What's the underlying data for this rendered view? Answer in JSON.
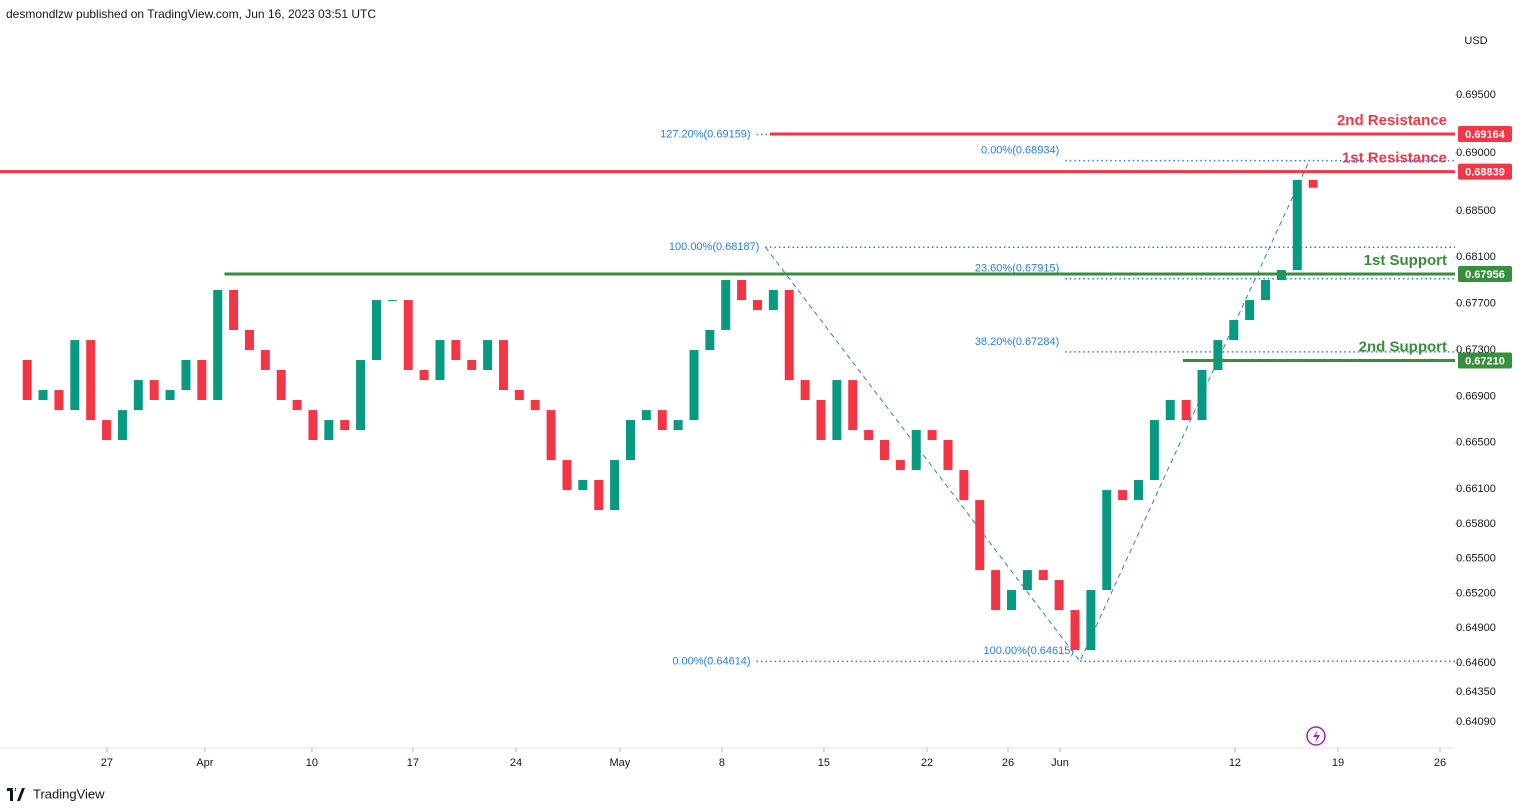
{
  "header": "desmondlzw published on TradingView.com, Jun 16, 2023 03:51 UTC",
  "footer": "TradingView",
  "chart_data": {
    "type": "candlestick",
    "currency": "USD",
    "up_color": "#089981",
    "down_color": "#f23645",
    "x": [
      0.5,
      1.58,
      2.66,
      3.74,
      4.82,
      5.9,
      6.98,
      8.06,
      9.14,
      10.22,
      11.3,
      12.38,
      13.46,
      14.54,
      15.62,
      16.7,
      17.78,
      18.86,
      19.94,
      21.02,
      22.1,
      23.18,
      24.26,
      25.34,
      26.42,
      27.5,
      28.58,
      29.66,
      30.74,
      31.82,
      32.9,
      33.98,
      35.06,
      36.14,
      37.22,
      38.3,
      39.38,
      40.46,
      41.54,
      42.62,
      43.7,
      44.78,
      45.86,
      46.94,
      48.02,
      49.1,
      50.18,
      51.26,
      52.34,
      53.42,
      54.5,
      55.58,
      56.66,
      57.74,
      58.82,
      59.9,
      60.98,
      62.06,
      63.14,
      64.22,
      65.3,
      66.38,
      67.46,
      68.54,
      69.62,
      70.7,
      71.78,
      72.86,
      73.94,
      75.02,
      76.1,
      77.18,
      78.26,
      79.34,
      80.42,
      81.5,
      82.58,
      83.66,
      84.74,
      85.82,
      86.9,
      87.98,
      89.06
    ],
    "values": [
      0.67214,
      0.66869,
      0.66955,
      0.66782,
      0.67386,
      0.66696,
      0.66524,
      0.66782,
      0.67041,
      0.66869,
      0.66955,
      0.67214,
      0.66869,
      0.67818,
      0.67473,
      0.673,
      0.67128,
      0.66869,
      0.66782,
      0.66524,
      0.66696,
      0.6661,
      0.67214,
      0.67731,
      0.67731,
      0.67128,
      0.67041,
      0.67386,
      0.67214,
      0.67128,
      0.67386,
      0.66955,
      0.66869,
      0.66782,
      0.66351,
      0.66092,
      0.66179,
      0.6592,
      0.66351,
      0.66696,
      0.66782,
      0.6661,
      0.66696,
      0.673,
      0.67473,
      0.67904,
      0.67731,
      0.67645,
      0.67818,
      0.67041,
      0.66869,
      0.66524,
      0.67041,
      0.6661,
      0.66524,
      0.66351,
      0.66265,
      0.6661,
      0.66524,
      0.66265,
      0.66006,
      0.65402,
      0.65057,
      0.6523,
      0.65402,
      0.65316,
      0.65057,
      0.64712,
      0.6523,
      0.66092,
      0.66006,
      0.66179,
      0.66696,
      0.66869,
      0.66696,
      0.67128,
      0.67386,
      0.67559,
      0.67731,
      0.67904,
      0.6799,
      0.68767,
      0.687
    ],
    "xlim": [
      -0.27,
      98.71
    ],
    "ylim": [
      0.63893,
      0.70147
    ],
    "xticks": [
      {
        "value": 7,
        "label": "27"
      },
      {
        "value": 13.67,
        "label": "Apr"
      },
      {
        "value": 20.95,
        "label": "10"
      },
      {
        "value": 27.82,
        "label": "17"
      },
      {
        "value": 34.83,
        "label": "24"
      },
      {
        "value": 41.9,
        "label": "May"
      },
      {
        "value": 48.84,
        "label": "8"
      },
      {
        "value": 55.78,
        "label": "15"
      },
      {
        "value": 62.79,
        "label": "22"
      },
      {
        "value": 68.3,
        "label": "26"
      },
      {
        "value": 71.84,
        "label": "Jun"
      },
      {
        "value": 83.74,
        "label": "12"
      },
      {
        "value": 90.75,
        "label": "19"
      },
      {
        "value": 97.69,
        "label": "26"
      }
    ],
    "yticks": [
      {
        "value": 0.695,
        "label": "0.69500"
      },
      {
        "value": 0.69,
        "label": "0.69000"
      },
      {
        "value": 0.685,
        "label": "0.68500"
      },
      {
        "value": 0.681,
        "label": "0.68100"
      },
      {
        "value": 0.677,
        "label": "0.67700"
      },
      {
        "value": 0.673,
        "label": "0.67300"
      },
      {
        "value": 0.669,
        "label": "0.66900"
      },
      {
        "value": 0.665,
        "label": "0.66500"
      },
      {
        "value": 0.661,
        "label": "0.66100"
      },
      {
        "value": 0.658,
        "label": "0.65800"
      },
      {
        "value": 0.655,
        "label": "0.65500"
      },
      {
        "value": 0.652,
        "label": "0.65200"
      },
      {
        "value": 0.649,
        "label": "0.64900"
      },
      {
        "value": 0.646,
        "label": "0.64600"
      },
      {
        "value": 0.6435,
        "label": "0.64350"
      },
      {
        "value": 0.6409,
        "label": "0.64090"
      }
    ],
    "levels": [
      {
        "name": "2nd Resistance",
        "value": 0.69164,
        "label": "0.69164",
        "color": "#f23645",
        "from": 52.1
      },
      {
        "name": "1st Resistance",
        "value": 0.68839,
        "label": "0.68839",
        "color": "#f23645",
        "from": -0.27
      },
      {
        "name": "1st Support",
        "value": 0.67956,
        "label": "0.67956",
        "color": "#388e3c",
        "from": 15.0
      },
      {
        "name": "2nd Support",
        "value": 0.6721,
        "label": "0.67210",
        "color": "#388e3c",
        "from": 80.2
      }
    ],
    "fib": [
      {
        "label": "127.20%(0.69159)",
        "value": 0.69159,
        "from": 51.2,
        "to": 52.2
      },
      {
        "label": "0.00%(0.68934)",
        "value": 0.68934,
        "from": 72.2,
        "to": 98.71
      },
      {
        "label": "100.00%(0.68187)",
        "value": 0.68187,
        "from": 51.8,
        "to": 98.71
      },
      {
        "label": "23.60%(0.67915)",
        "value": 0.67915,
        "from": 72.2,
        "to": 98.71
      },
      {
        "label": "38.20%(0.67284)",
        "value": 0.67284,
        "from": 72.2,
        "to": 98.71
      },
      {
        "label": "0.00%(0.64614)",
        "value": 0.64614,
        "from": 51.2,
        "to": 72.5
      },
      {
        "label": "100.00%(0.64615)",
        "value": 0.64615,
        "from": 73.2,
        "to": 98.71
      }
    ],
    "swing_x": [
      51.8,
      73.2,
      88.8
    ]
  }
}
